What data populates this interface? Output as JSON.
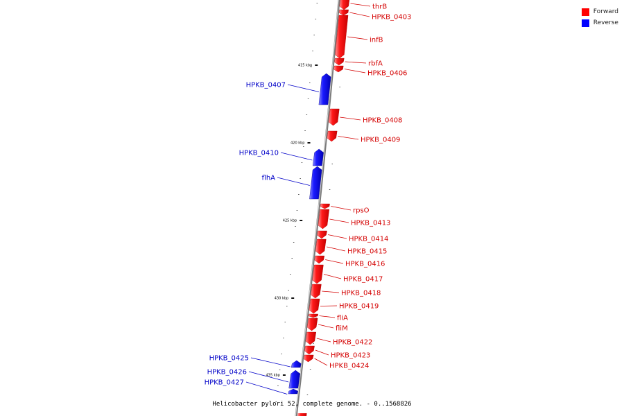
{
  "legend": {
    "forward_label": "Forward",
    "reverse_label": "Reverse",
    "forward_color": "#ff0000",
    "reverse_color": "#0000ff"
  },
  "caption": "Helicobacter pylori 52, complete genome. - 0..1568826",
  "ticks": [
    "415 kbp",
    "420 kbp",
    "425 kbp",
    "430 kbp",
    "435 kbp"
  ],
  "genes": [
    {
      "name": "thrB",
      "strand": "forward"
    },
    {
      "name": "HPKB_0403",
      "strand": "forward"
    },
    {
      "name": "infB",
      "strand": "forward"
    },
    {
      "name": "rbfA",
      "strand": "forward"
    },
    {
      "name": "HPKB_0406",
      "strand": "forward"
    },
    {
      "name": "HPKB_0407",
      "strand": "reverse"
    },
    {
      "name": "HPKB_0408",
      "strand": "forward"
    },
    {
      "name": "HPKB_0409",
      "strand": "forward"
    },
    {
      "name": "HPKB_0410",
      "strand": "reverse"
    },
    {
      "name": "flhA",
      "strand": "reverse"
    },
    {
      "name": "rpsO",
      "strand": "forward"
    },
    {
      "name": "HPKB_0413",
      "strand": "forward"
    },
    {
      "name": "HPKB_0414",
      "strand": "forward"
    },
    {
      "name": "HPKB_0415",
      "strand": "forward"
    },
    {
      "name": "HPKB_0416",
      "strand": "forward"
    },
    {
      "name": "HPKB_0417",
      "strand": "forward"
    },
    {
      "name": "HPKB_0418",
      "strand": "forward"
    },
    {
      "name": "HPKB_0419",
      "strand": "forward"
    },
    {
      "name": "fliA",
      "strand": "forward"
    },
    {
      "name": "fliM",
      "strand": "forward"
    },
    {
      "name": "HPKB_0422",
      "strand": "forward"
    },
    {
      "name": "HPKB_0423",
      "strand": "forward"
    },
    {
      "name": "HPKB_0424",
      "strand": "forward"
    },
    {
      "name": "HPKB_0425",
      "strand": "reverse"
    },
    {
      "name": "HPKB_0426",
      "strand": "reverse"
    },
    {
      "name": "HPKB_0427",
      "strand": "reverse"
    }
  ]
}
